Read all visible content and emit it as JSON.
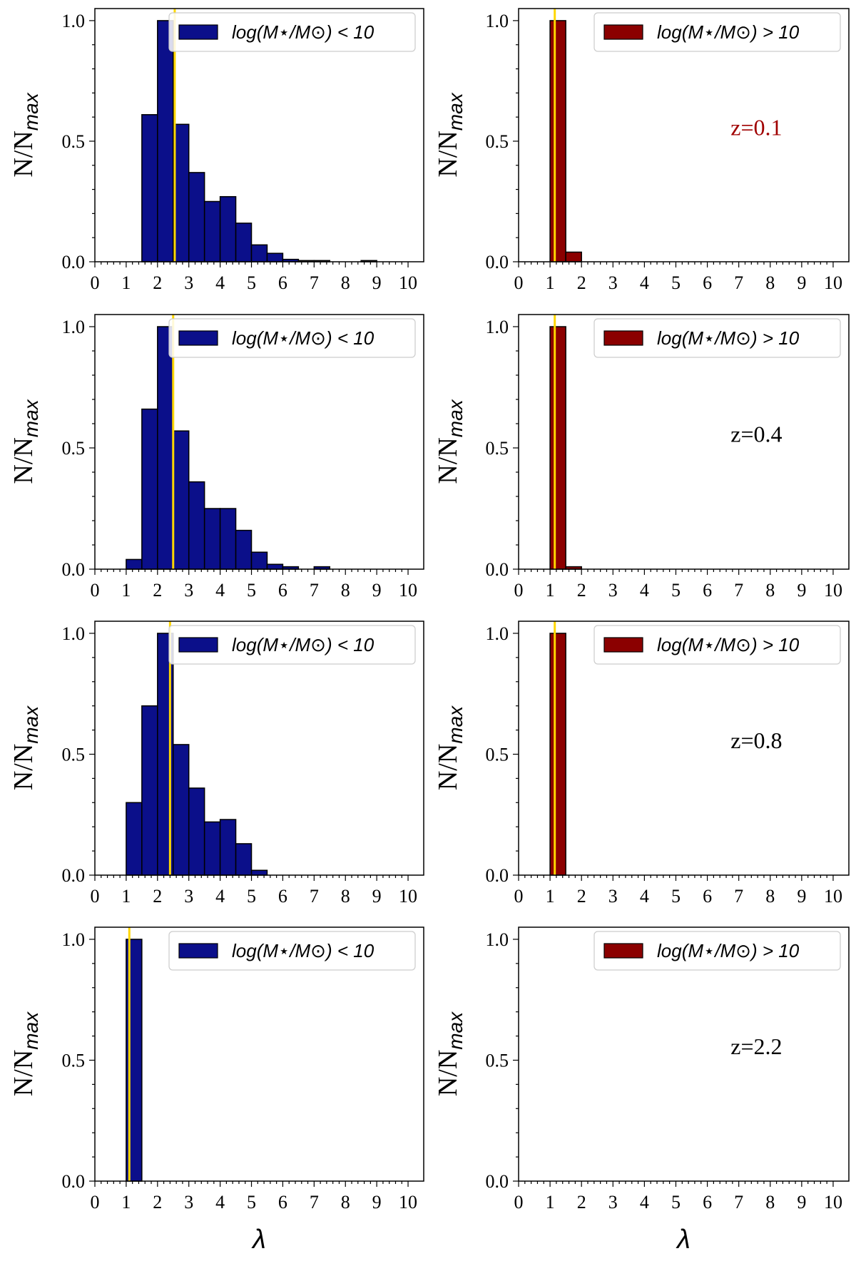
{
  "colors": {
    "low_mass_bar": "#0b0f8a",
    "high_mass_bar": "#8b0000",
    "median_line": "#ffd700",
    "annotation_red": "#a00000",
    "annotation_black": "#000000"
  },
  "chart_data": {
    "type": "bar",
    "layout": "4 rows x 2 columns",
    "xlabel": "λ",
    "ylabel": "N/N",
    "ylabel_subscript": "max",
    "xlim": [
      0,
      10.5
    ],
    "ylim": [
      0,
      1.05
    ],
    "bin_width": 0.5,
    "x_ticks": [
      "0",
      "1",
      "2",
      "3",
      "4",
      "5",
      "6",
      "7",
      "8",
      "9",
      "10"
    ],
    "y_ticks": [
      "0.0",
      "0.5",
      "1.0"
    ],
    "legends": {
      "low": "log(M⋆/M⊙) < 10",
      "high": "log(M⋆/M⊙) > 10"
    },
    "panels": [
      {
        "row": 0,
        "group": "low",
        "color_key": "low_mass_bar",
        "median": 2.55,
        "bins": [
          [
            1.5,
            0.61
          ],
          [
            2.0,
            1.0
          ],
          [
            2.5,
            0.57
          ],
          [
            3.0,
            0.37
          ],
          [
            3.5,
            0.25
          ],
          [
            4.0,
            0.27
          ],
          [
            4.5,
            0.16
          ],
          [
            5.0,
            0.07
          ],
          [
            5.5,
            0.035
          ],
          [
            6.0,
            0.01
          ],
          [
            6.5,
            0.005
          ],
          [
            7.0,
            0.005
          ],
          [
            8.5,
            0.005
          ]
        ]
      },
      {
        "row": 0,
        "group": "high",
        "color_key": "high_mass_bar",
        "median": 1.15,
        "annotation": "z=0.1",
        "annotation_color_key": "annotation_red",
        "bins": [
          [
            1.0,
            1.0
          ],
          [
            1.5,
            0.04
          ]
        ]
      },
      {
        "row": 1,
        "group": "low",
        "color_key": "low_mass_bar",
        "median": 2.5,
        "bins": [
          [
            1.0,
            0.04
          ],
          [
            1.5,
            0.66
          ],
          [
            2.0,
            1.0
          ],
          [
            2.5,
            0.57
          ],
          [
            3.0,
            0.36
          ],
          [
            3.5,
            0.25
          ],
          [
            4.0,
            0.25
          ],
          [
            4.5,
            0.16
          ],
          [
            5.0,
            0.07
          ],
          [
            5.5,
            0.02
          ],
          [
            6.0,
            0.01
          ],
          [
            7.0,
            0.01
          ]
        ]
      },
      {
        "row": 1,
        "group": "high",
        "color_key": "high_mass_bar",
        "median": 1.15,
        "annotation": "z=0.4",
        "annotation_color_key": "annotation_black",
        "bins": [
          [
            1.0,
            1.0
          ],
          [
            1.5,
            0.01
          ]
        ]
      },
      {
        "row": 2,
        "group": "low",
        "color_key": "low_mass_bar",
        "median": 2.4,
        "bins": [
          [
            1.0,
            0.3
          ],
          [
            1.5,
            0.7
          ],
          [
            2.0,
            1.0
          ],
          [
            2.5,
            0.54
          ],
          [
            3.0,
            0.36
          ],
          [
            3.5,
            0.22
          ],
          [
            4.0,
            0.23
          ],
          [
            4.5,
            0.13
          ],
          [
            5.0,
            0.02
          ]
        ]
      },
      {
        "row": 2,
        "group": "high",
        "color_key": "high_mass_bar",
        "median": 1.15,
        "annotation": "z=0.8",
        "annotation_color_key": "annotation_black",
        "bins": [
          [
            1.0,
            1.0
          ]
        ]
      },
      {
        "row": 3,
        "group": "low",
        "color_key": "low_mass_bar",
        "median": 1.1,
        "bins": [
          [
            1.0,
            1.0
          ]
        ]
      },
      {
        "row": 3,
        "group": "high",
        "color_key": "high_mass_bar",
        "median": null,
        "annotation": "z=2.2",
        "annotation_color_key": "annotation_black",
        "bins": []
      }
    ]
  }
}
